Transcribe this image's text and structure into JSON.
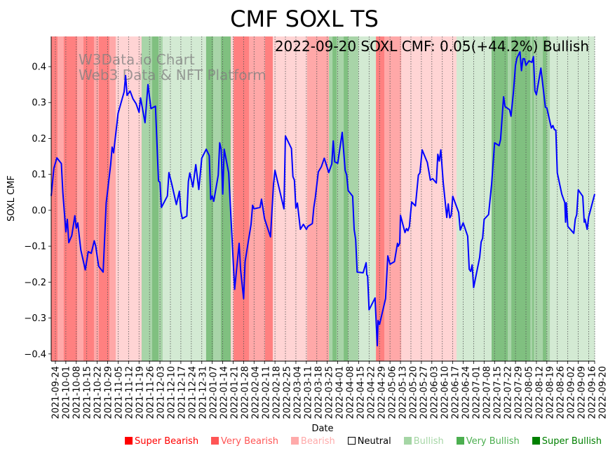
{
  "chart_data": {
    "type": "line",
    "title": "CMF SOXL TS",
    "annotation": "2022-09-20 SOXL CMF: 0.05(+44.2%) Bullish",
    "watermark": [
      "W3Data.io Chart",
      "Web3 Data & NFT Platform"
    ],
    "xlabel": "Date",
    "ylabel": "SOXL CMF",
    "x_unit": "days since 2021-09-24",
    "xlim": [
      -2.8,
      361
    ],
    "ylim": [
      -0.42,
      0.484
    ],
    "yticks": [
      -0.4,
      -0.3,
      -0.2,
      -0.1,
      0.0,
      0.1,
      0.2,
      0.3,
      0.4
    ],
    "ytick_labels": [
      "−0.4",
      "−0.3",
      "−0.2",
      "−0.1",
      "0.0",
      "0.1",
      "0.2",
      "0.3",
      "0.4"
    ],
    "xtick_days": [
      0,
      7,
      14,
      21,
      28,
      35,
      42,
      49,
      56,
      63,
      70,
      77,
      84,
      91,
      98,
      105,
      112,
      119,
      126,
      133,
      140,
      147,
      154,
      161,
      168,
      175,
      182,
      189,
      196,
      203,
      210,
      217,
      224,
      231,
      238,
      245,
      252,
      259,
      266,
      273,
      280,
      287,
      294,
      301,
      308,
      315,
      322,
      329,
      336,
      343,
      350,
      357,
      361
    ],
    "xtick_labels": [
      "2021-09-24",
      "2021-10-01",
      "2021-10-08",
      "2021-10-15",
      "2021-10-22",
      "2021-10-29",
      "2021-11-05",
      "2021-11-12",
      "2021-11-19",
      "2021-11-26",
      "2021-12-03",
      "2021-12-10",
      "2021-12-17",
      "2021-12-24",
      "2021-12-31",
      "2022-01-07",
      "2022-01-14",
      "2022-01-21",
      "2022-01-28",
      "2022-02-04",
      "2022-02-11",
      "2022-02-18",
      "2022-02-25",
      "2022-03-04",
      "2022-03-11",
      "2022-03-18",
      "2022-03-25",
      "2022-04-01",
      "2022-04-08",
      "2022-04-15",
      "2022-04-22",
      "2022-04-29",
      "2022-05-06",
      "2022-05-13",
      "2022-05-20",
      "2022-05-27",
      "2022-06-03",
      "2022-06-10",
      "2022-06-17",
      "2022-06-24",
      "2022-07-01",
      "2022-07-08",
      "2022-07-15",
      "2022-07-22",
      "2022-07-29",
      "2022-08-05",
      "2022-08-12",
      "2022-08-19",
      "2022-08-26",
      "2022-09-02",
      "2022-09-09",
      "2022-09-16",
      "2022-09-20"
    ],
    "grid": "vertical dotted at x ticks",
    "series": [
      {
        "name": "SOXL CMF",
        "color": "#0000ff",
        "points": [
          [
            -2.8,
            0.04
          ],
          [
            -1,
            0.117
          ],
          [
            1,
            0.146
          ],
          [
            4,
            0.13
          ],
          [
            5,
            0.05
          ],
          [
            7,
            -0.06
          ],
          [
            8,
            -0.025
          ],
          [
            9,
            -0.09
          ],
          [
            11,
            -0.07
          ],
          [
            13,
            -0.015
          ],
          [
            14,
            -0.05
          ],
          [
            15,
            -0.035
          ],
          [
            17,
            -0.11
          ],
          [
            20,
            -0.166
          ],
          [
            22,
            -0.115
          ],
          [
            24,
            -0.12
          ],
          [
            26,
            -0.085
          ],
          [
            27,
            -0.1
          ],
          [
            29,
            -0.156
          ],
          [
            32,
            -0.172
          ],
          [
            34,
            0.02
          ],
          [
            37,
            0.127
          ],
          [
            38,
            0.176
          ],
          [
            39,
            0.16
          ],
          [
            42,
            0.27
          ],
          [
            46,
            0.33
          ],
          [
            47,
            0.375
          ],
          [
            48,
            0.32
          ],
          [
            50,
            0.332
          ],
          [
            52,
            0.31
          ],
          [
            54,
            0.297
          ],
          [
            56,
            0.273
          ],
          [
            57,
            0.313
          ],
          [
            60,
            0.244
          ],
          [
            62,
            0.35
          ],
          [
            64,
            0.283
          ],
          [
            67,
            0.29
          ],
          [
            69,
            0.082
          ],
          [
            70,
            0.078
          ],
          [
            71,
            0.008
          ],
          [
            75,
            0.04
          ],
          [
            76,
            0.105
          ],
          [
            78,
            0.072
          ],
          [
            81,
            0.016
          ],
          [
            83,
            0.053
          ],
          [
            84,
            -0.004
          ],
          [
            85,
            -0.023
          ],
          [
            88,
            -0.016
          ],
          [
            89,
            0.08
          ],
          [
            90,
            0.104
          ],
          [
            92,
            0.065
          ],
          [
            94,
            0.127
          ],
          [
            96,
            0.058
          ],
          [
            98,
            0.145
          ],
          [
            101,
            0.17
          ],
          [
            103,
            0.152
          ],
          [
            104,
            0.03
          ],
          [
            105,
            0.04
          ],
          [
            106,
            0.025
          ],
          [
            109,
            0.098
          ],
          [
            110,
            0.188
          ],
          [
            111,
            0.17
          ],
          [
            112,
            0.045
          ],
          [
            113,
            0.17
          ],
          [
            116,
            0.104
          ],
          [
            120,
            -0.22
          ],
          [
            123,
            -0.092
          ],
          [
            124,
            -0.166
          ],
          [
            126,
            -0.246
          ],
          [
            127,
            -0.143
          ],
          [
            131,
            -0.039
          ],
          [
            132,
            0.014
          ],
          [
            133,
            0.004
          ],
          [
            137,
            0.008
          ],
          [
            138,
            0.031
          ],
          [
            140,
            -0.023
          ],
          [
            144,
            -0.074
          ],
          [
            146,
            0.072
          ],
          [
            147,
            0.111
          ],
          [
            153,
            0.004
          ],
          [
            154,
            0.207
          ],
          [
            158,
            0.172
          ],
          [
            159,
            0.094
          ],
          [
            160,
            0.084
          ],
          [
            161,
            0.006
          ],
          [
            162,
            0.02
          ],
          [
            164,
            -0.053
          ],
          [
            166,
            -0.039
          ],
          [
            168,
            -0.053
          ],
          [
            169,
            -0.045
          ],
          [
            172,
            -0.037
          ],
          [
            173,
            0.008
          ],
          [
            174,
            0.035
          ],
          [
            176,
            0.107
          ],
          [
            178,
            0.121
          ],
          [
            180,
            0.145
          ],
          [
            183,
            0.105
          ],
          [
            185,
            0.129
          ],
          [
            186,
            0.193
          ],
          [
            187,
            0.135
          ],
          [
            189,
            0.131
          ],
          [
            192,
            0.217
          ],
          [
            194,
            0.111
          ],
          [
            195,
            0.098
          ],
          [
            196,
            0.055
          ],
          [
            199,
            0.039
          ],
          [
            200,
            -0.053
          ],
          [
            201,
            -0.082
          ],
          [
            202,
            -0.172
          ],
          [
            206,
            -0.174
          ],
          [
            208,
            -0.146
          ],
          [
            208.5,
            -0.18
          ],
          [
            209,
            -0.182
          ],
          [
            210,
            -0.277
          ],
          [
            214,
            -0.244
          ],
          [
            215.5,
            -0.377
          ],
          [
            216,
            -0.307
          ],
          [
            217,
            -0.318
          ],
          [
            221,
            -0.246
          ],
          [
            222.5,
            -0.127
          ],
          [
            224,
            -0.15
          ],
          [
            227,
            -0.143
          ],
          [
            229,
            -0.092
          ],
          [
            229.5,
            -0.1
          ],
          [
            230.5,
            -0.092
          ],
          [
            231,
            -0.014
          ],
          [
            234,
            -0.062
          ],
          [
            235,
            -0.051
          ],
          [
            236,
            -0.057
          ],
          [
            237,
            -0.045
          ],
          [
            238.5,
            0.023
          ],
          [
            241,
            0.012
          ],
          [
            243,
            0.098
          ],
          [
            244,
            0.104
          ],
          [
            245.5,
            0.168
          ],
          [
            249,
            0.133
          ],
          [
            251,
            0.084
          ],
          [
            252.5,
            0.088
          ],
          [
            255,
            0.076
          ],
          [
            256,
            0.156
          ],
          [
            257,
            0.137
          ],
          [
            258,
            0.168
          ],
          [
            259.6,
            0.078
          ],
          [
            262,
            -0.02
          ],
          [
            263,
            0.018
          ],
          [
            264,
            -0.021
          ],
          [
            265,
            -0.014
          ],
          [
            266,
            0.039
          ],
          [
            270,
            -0.006
          ],
          [
            271,
            -0.055
          ],
          [
            273,
            -0.035
          ],
          [
            276,
            -0.072
          ],
          [
            277,
            -0.164
          ],
          [
            278,
            -0.17
          ],
          [
            279,
            -0.152
          ],
          [
            280,
            -0.215
          ],
          [
            284,
            -0.131
          ],
          [
            285,
            -0.088
          ],
          [
            286,
            -0.078
          ],
          [
            287,
            -0.025
          ],
          [
            290,
            -0.012
          ],
          [
            292,
            0.072
          ],
          [
            294,
            0.188
          ],
          [
            297,
            0.18
          ],
          [
            298,
            0.197
          ],
          [
            300,
            0.316
          ],
          [
            301,
            0.289
          ],
          [
            304,
            0.28
          ],
          [
            305,
            0.262
          ],
          [
            306.6,
            0.328
          ],
          [
            308,
            0.404
          ],
          [
            309,
            0.424
          ],
          [
            311,
            0.441
          ],
          [
            312,
            0.389
          ],
          [
            313,
            0.422
          ],
          [
            314,
            0.422
          ],
          [
            315,
            0.404
          ],
          [
            317,
            0.416
          ],
          [
            319,
            0.412
          ],
          [
            320,
            0.428
          ],
          [
            321,
            0.332
          ],
          [
            322,
            0.322
          ],
          [
            325,
            0.396
          ],
          [
            328,
            0.287
          ],
          [
            329,
            0.285
          ],
          [
            332,
            0.229
          ],
          [
            333,
            0.236
          ],
          [
            334,
            0.225
          ],
          [
            335,
            0.223
          ],
          [
            336,
            0.104
          ],
          [
            339,
            0.045
          ],
          [
            341,
            0.021
          ],
          [
            341.5,
            -0.033
          ],
          [
            342,
            0.021
          ],
          [
            343,
            -0.045
          ],
          [
            347,
            -0.064
          ],
          [
            348,
            -0.025
          ],
          [
            349,
            -0.012
          ],
          [
            350,
            0.057
          ],
          [
            353,
            0.039
          ],
          [
            354,
            -0.033
          ],
          [
            354.5,
            -0.025
          ],
          [
            356,
            -0.053
          ],
          [
            357,
            -0.018
          ],
          [
            361,
            0.045
          ]
        ]
      }
    ],
    "zone_colors": {
      "super_bearish": "#ff8080",
      "very_bearish": "#ffa8a8",
      "bearish": "#ffd4d4",
      "bullish": "#d3ead3",
      "very_bullish": "#a8d4a8",
      "super_bullish": "#80c080"
    },
    "zones": [
      [
        -2.8,
        1.4,
        "super_bearish"
      ],
      [
        1.4,
        5.6,
        "very_bearish"
      ],
      [
        5.6,
        14.6,
        "super_bearish"
      ],
      [
        14.6,
        18.8,
        "very_bearish"
      ],
      [
        18.8,
        25.8,
        "super_bearish"
      ],
      [
        25.8,
        29.1,
        "very_bearish"
      ],
      [
        29.1,
        36.2,
        "super_bearish"
      ],
      [
        36.2,
        40.4,
        "very_bearish"
      ],
      [
        40.4,
        57.7,
        "bearish"
      ],
      [
        57.7,
        64.8,
        "very_bullish"
      ],
      [
        64.8,
        69,
        "super_bullish"
      ],
      [
        69,
        71.8,
        "very_bullish"
      ],
      [
        71.8,
        100.9,
        "bullish"
      ],
      [
        100.9,
        105.6,
        "super_bullish"
      ],
      [
        105.6,
        110.8,
        "very_bullish"
      ],
      [
        110.8,
        117.4,
        "super_bullish"
      ],
      [
        117.4,
        119.3,
        "bearish"
      ],
      [
        119.3,
        129.6,
        "super_bearish"
      ],
      [
        129.6,
        140.4,
        "very_bearish"
      ],
      [
        140.4,
        145.5,
        "super_bearish"
      ],
      [
        145.5,
        168.5,
        "bearish"
      ],
      [
        168.5,
        183.1,
        "very_bearish"
      ],
      [
        183.1,
        185.5,
        "very_bullish"
      ],
      [
        185.5,
        188.3,
        "super_bullish"
      ],
      [
        188.3,
        193,
        "very_bullish"
      ],
      [
        193,
        195.8,
        "super_bullish"
      ],
      [
        195.8,
        202.8,
        "very_bullish"
      ],
      [
        202.8,
        214.6,
        "bullish"
      ],
      [
        214.6,
        220.2,
        "super_bearish"
      ],
      [
        220.2,
        231.5,
        "very_bearish"
      ],
      [
        231.5,
        268.5,
        "bearish"
      ],
      [
        268.5,
        292,
        "bullish"
      ],
      [
        292,
        302.8,
        "super_bullish"
      ],
      [
        302.8,
        305.2,
        "very_bullish"
      ],
      [
        305.2,
        317.9,
        "super_bullish"
      ],
      [
        317.9,
        319.3,
        "very_bullish"
      ],
      [
        319.3,
        320.2,
        "super_bullish"
      ],
      [
        320.2,
        326.3,
        "very_bullish"
      ],
      [
        326.3,
        328.7,
        "super_bullish"
      ],
      [
        328.7,
        331,
        "very_bullish"
      ],
      [
        331,
        361,
        "bullish"
      ]
    ],
    "legend": {
      "placement": "bottom",
      "items": [
        {
          "label": "Super Bearish",
          "color": "#ff0000"
        },
        {
          "label": "Very Bearish",
          "color": "#ff5555"
        },
        {
          "label": "Bearish",
          "color": "#ffaaaa"
        },
        {
          "label": "Neutral",
          "color": "#000000"
        },
        {
          "label": "Bullish",
          "color": "#a5d6a5"
        },
        {
          "label": "Very Bullish",
          "color": "#4caf50"
        },
        {
          "label": "Super Bullish",
          "color": "#008000"
        }
      ]
    }
  }
}
